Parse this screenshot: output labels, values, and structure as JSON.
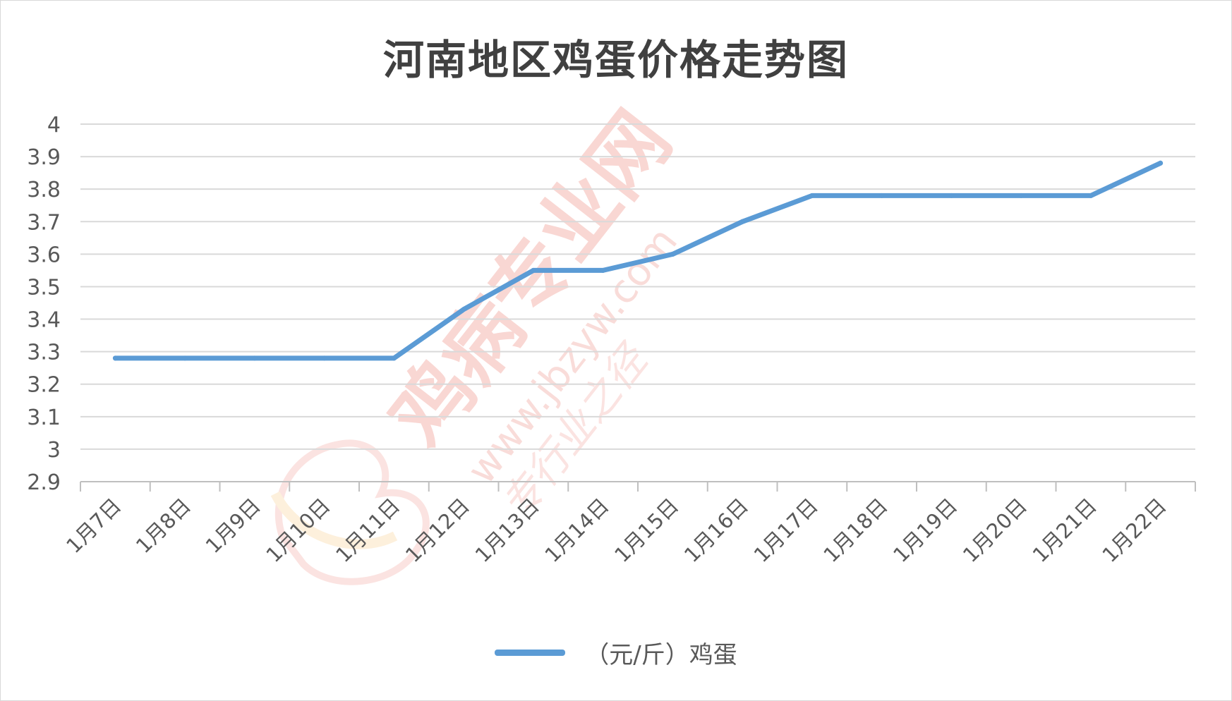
{
  "chart_data": {
    "type": "line",
    "title": "河南地区鸡蛋价格走势图",
    "categories": [
      "1月7日",
      "1月8日",
      "1月9日",
      "1月10日",
      "1月11日",
      "1月12日",
      "1月13日",
      "1月14日",
      "1月15日",
      "1月16日",
      "1月17日",
      "1月18日",
      "1月19日",
      "1月20日",
      "1月21日",
      "1月22日"
    ],
    "series": [
      {
        "name": "（元/斤）鸡蛋",
        "color": "#5b9bd5",
        "values": [
          3.28,
          3.28,
          3.28,
          3.28,
          3.28,
          3.43,
          3.55,
          3.55,
          3.6,
          3.7,
          3.78,
          3.78,
          3.78,
          3.78,
          3.78,
          3.88
        ]
      }
    ],
    "ylim": [
      2.9,
      4.0
    ],
    "yticks": [
      "2.9",
      "3",
      "3.1",
      "3.2",
      "3.3",
      "3.4",
      "3.5",
      "3.6",
      "3.7",
      "3.8",
      "3.9",
      "4"
    ],
    "xlabel": "",
    "ylabel": "",
    "grid": true,
    "legend_position": "bottom"
  },
  "watermark": {
    "text": "鸡病专业网",
    "url": "www.jbzyw.com",
    "slogan": "专行业之径",
    "color": "#f4b6b0"
  }
}
